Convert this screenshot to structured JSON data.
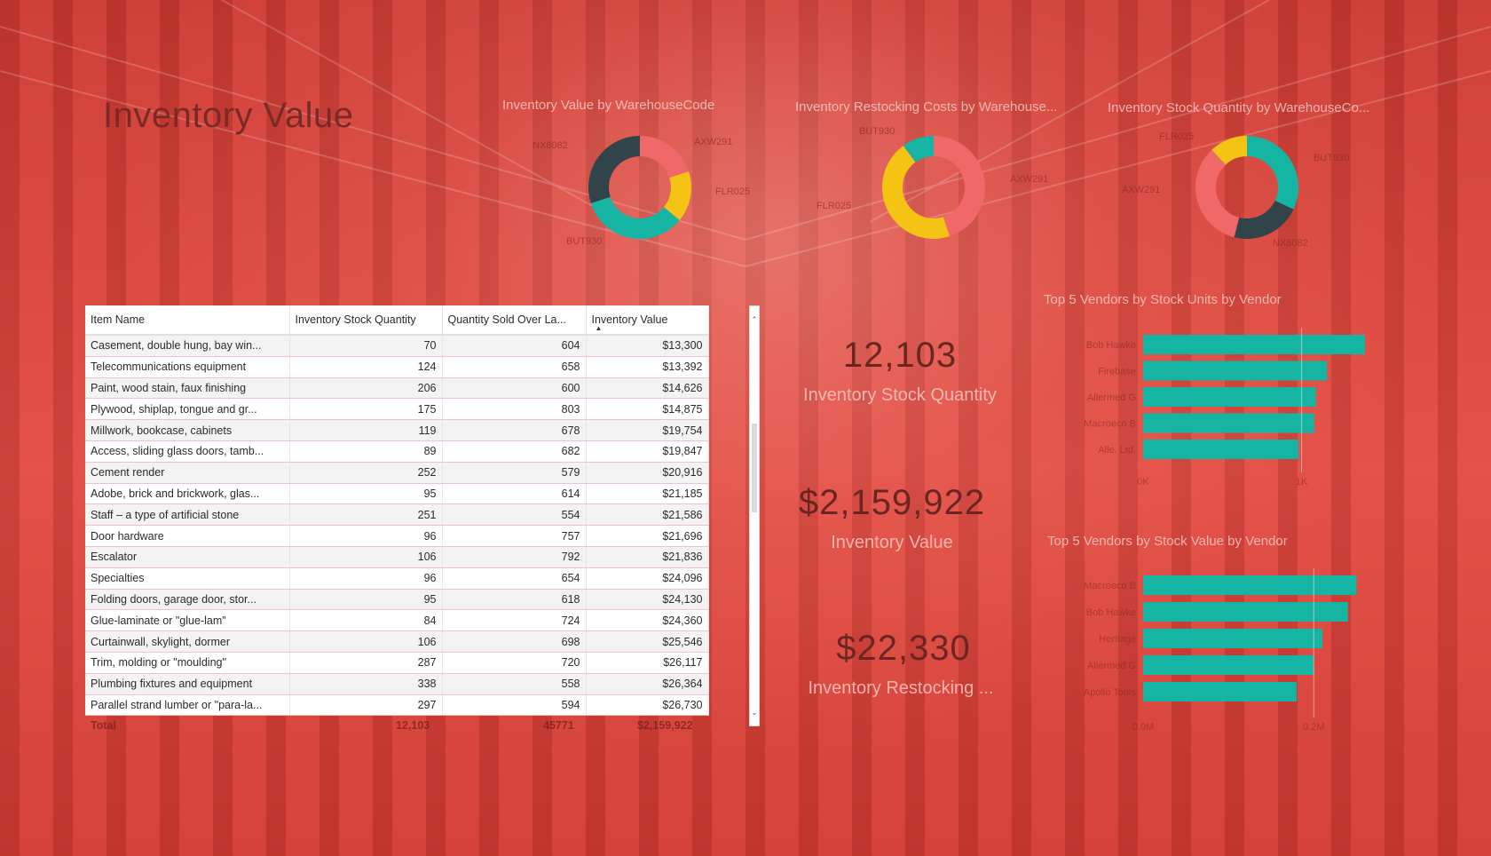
{
  "page": {
    "title": "Inventory Value"
  },
  "colors": {
    "teal": "#16b5a3",
    "coral": "#f06868",
    "yellow": "#f4c313",
    "dark": "#31444a"
  },
  "donuts": [
    {
      "title": "Inventory Value by WarehouseCode",
      "labels": [
        "NX8082",
        "AXW291",
        "FLR025",
        "BUT930"
      ],
      "segments": [
        {
          "label": "AXW291",
          "value": 0.2,
          "color": "#f06868"
        },
        {
          "label": "FLR025",
          "value": 0.16,
          "color": "#f4c313"
        },
        {
          "label": "BUT930",
          "value": 0.34,
          "color": "#16b5a3"
        },
        {
          "label": "NX8082",
          "value": 0.3,
          "color": "#31444a"
        }
      ]
    },
    {
      "title": "Inventory Restocking Costs by Warehouse...",
      "labels": [
        "BUT930",
        "AXW291",
        "FLR025"
      ],
      "segments": [
        {
          "label": "AXW291",
          "value": 0.45,
          "color": "#f06868"
        },
        {
          "label": "FLR025",
          "value": 0.45,
          "color": "#f4c313"
        },
        {
          "label": "BUT930",
          "value": 0.1,
          "color": "#16b5a3"
        }
      ]
    },
    {
      "title": "Inventory Stock Quantity by WarehouseCo...",
      "labels": [
        "FLR025",
        "BUT930",
        "AXW291",
        "NX8082"
      ],
      "segments": [
        {
          "label": "BUT930",
          "value": 0.32,
          "color": "#16b5a3"
        },
        {
          "label": "NX8082",
          "value": 0.22,
          "color": "#31444a"
        },
        {
          "label": "AXW291",
          "value": 0.34,
          "color": "#f06868"
        },
        {
          "label": "FLR025",
          "value": 0.12,
          "color": "#f4c313"
        }
      ]
    }
  ],
  "table": {
    "columns": [
      "Item Name",
      "Inventory Stock Quantity",
      "Quantity Sold Over La...",
      "Inventory Value"
    ],
    "rows": [
      [
        "Casement, double hung, bay win...",
        "70",
        "604",
        "$13,300"
      ],
      [
        "Telecommunications equipment",
        "124",
        "658",
        "$13,392"
      ],
      [
        "Paint, wood stain, faux finishing",
        "206",
        "600",
        "$14,626"
      ],
      [
        "Plywood, shiplap, tongue and gr...",
        "175",
        "803",
        "$14,875"
      ],
      [
        "Millwork, bookcase, cabinets",
        "119",
        "678",
        "$19,754"
      ],
      [
        "Access, sliding glass doors, tamb...",
        "89",
        "682",
        "$19,847"
      ],
      [
        "Cement render",
        "252",
        "579",
        "$20,916"
      ],
      [
        "Adobe, brick and brickwork, glas...",
        "95",
        "614",
        "$21,185"
      ],
      [
        "Staff – a type of artificial stone",
        "251",
        "554",
        "$21,586"
      ],
      [
        "Door hardware",
        "96",
        "757",
        "$21,696"
      ],
      [
        "Escalator",
        "106",
        "792",
        "$21,836"
      ],
      [
        "Specialties",
        "96",
        "654",
        "$24,096"
      ],
      [
        "Folding doors, garage door, stor...",
        "95",
        "618",
        "$24,130"
      ],
      [
        "Glue-laminate or \"glue-lam\"",
        "84",
        "724",
        "$24,360"
      ],
      [
        "Curtainwall, skylight, dormer",
        "106",
        "698",
        "$25,546"
      ],
      [
        "Trim, molding or \"moulding\"",
        "287",
        "720",
        "$26,117"
      ],
      [
        "Plumbing fixtures and equipment",
        "338",
        "558",
        "$26,364"
      ],
      [
        "Parallel strand lumber or \"para-la...",
        "297",
        "594",
        "$26,730"
      ]
    ],
    "total": {
      "label": "Total",
      "qty": "12,103",
      "sold": "45771",
      "value": "$2,159,922"
    }
  },
  "kpis": [
    {
      "value": "12,103",
      "label": "Inventory Stock Quantity"
    },
    {
      "value": "$2,159,922",
      "label": "Inventory Value"
    },
    {
      "value": "$22,330",
      "label": "Inventory Restocking ..."
    }
  ],
  "chart_data": [
    {
      "type": "bar",
      "orientation": "horizontal",
      "title": "Top 5 Vendors by Stock Units by Vendor",
      "categories": [
        "Bob Hawke",
        "Firebase",
        "Allermed G",
        "Macroeco B",
        "Alle. Ltd."
      ],
      "values": [
        1.4,
        1.16,
        1.09,
        1.08,
        0.98
      ],
      "xticks": [
        "0K",
        "1K"
      ],
      "xlim": [
        0,
        1.4
      ]
    },
    {
      "type": "bar",
      "orientation": "horizontal",
      "title": "Top 5 Vendors by Stock Value by Vendor",
      "categories": [
        "Macroeco B",
        "Bob Hawke",
        "Heritage",
        "Allermed G",
        "Apollo Tools"
      ],
      "values": [
        0.25,
        0.24,
        0.21,
        0.2,
        0.18
      ],
      "xticks": [
        "0.0M",
        "0.2M"
      ],
      "xlim": [
        0,
        0.26
      ]
    }
  ]
}
